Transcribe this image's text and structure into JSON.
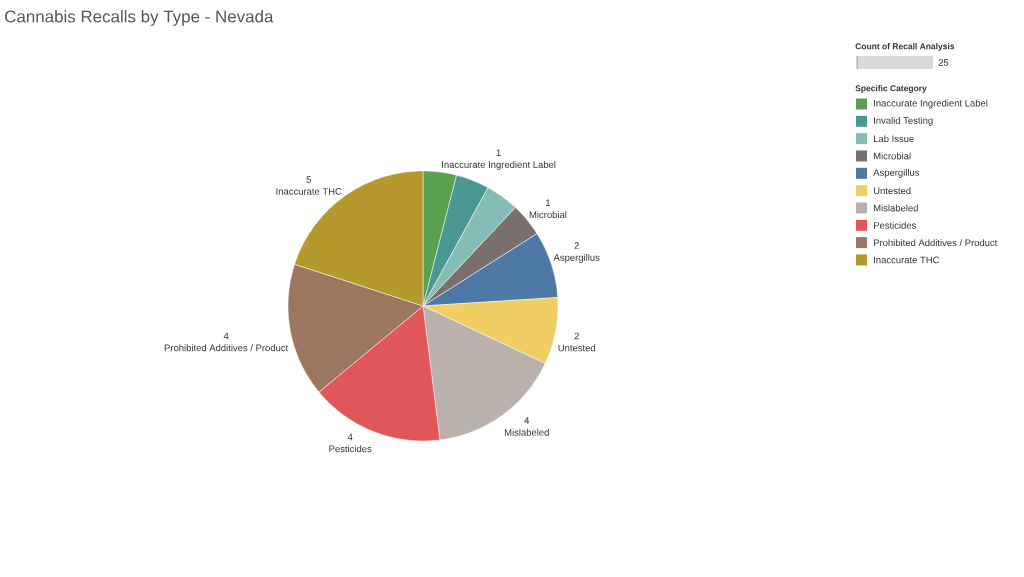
{
  "chart_data": {
    "type": "pie",
    "title": "Cannabis Recalls by Type - Nevada",
    "legend_title": "Specific Category",
    "categories": [
      "Inaccurate Ingredient Label",
      "Invalid Testing",
      "Lab Issue",
      "Microbial",
      "Aspergillus",
      "Untested",
      "Mislabeled",
      "Pesticides",
      "Prohibited Additives / Product",
      "Inaccurate THC"
    ],
    "values": [
      1,
      1,
      1,
      1,
      2,
      2,
      4,
      4,
      4,
      5
    ],
    "colors": [
      "#59a14f",
      "#499894",
      "#86bcb6",
      "#79706e",
      "#4e79a7",
      "#f1ce63",
      "#bab0ac",
      "#e15759",
      "#9d7660",
      "#b6992d"
    ],
    "value_labels": [
      "1",
      null,
      null,
      "1",
      "2",
      "2",
      "4",
      "4",
      "4",
      "5"
    ],
    "legend": "top right",
    "annotations": [
      "Count of Recall Analysis",
      "25"
    ]
  }
}
